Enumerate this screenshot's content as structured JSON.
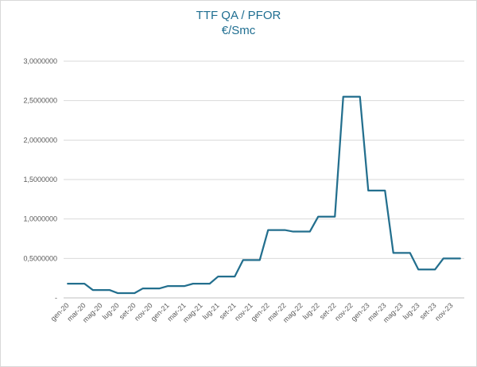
{
  "chart_data": {
    "type": "line",
    "title": "TTF QA / PFOR",
    "subtitle": "€/Smc",
    "xlabel": "",
    "ylabel": "",
    "ylim": [
      0,
      3.0
    ],
    "y_ticks": [
      {
        "value": 0,
        "label": "-"
      },
      {
        "value": 0.5,
        "label": "0,5000000"
      },
      {
        "value": 1.0,
        "label": "1,0000000"
      },
      {
        "value": 1.5,
        "label": "1,5000000"
      },
      {
        "value": 2.0,
        "label": "2,0000000"
      },
      {
        "value": 2.5,
        "label": "2,5000000"
      },
      {
        "value": 3.0,
        "label": "3,0000000"
      }
    ],
    "grid": "horizontal",
    "legend": "none",
    "color": "#236f8e",
    "x": [
      "gen-20",
      "feb-20",
      "mar-20",
      "apr-20",
      "mag-20",
      "giu-20",
      "lug-20",
      "ago-20",
      "set-20",
      "ott-20",
      "nov-20",
      "dic-20",
      "gen-21",
      "feb-21",
      "mar-21",
      "apr-21",
      "mag-21",
      "giu-21",
      "lug-21",
      "ago-21",
      "set-21",
      "ott-21",
      "nov-21",
      "dic-21",
      "gen-22",
      "feb-22",
      "mar-22",
      "apr-22",
      "mag-22",
      "giu-22",
      "lug-22",
      "ago-22",
      "set-22",
      "ott-22",
      "nov-22",
      "dic-22",
      "gen-23",
      "feb-23",
      "mar-23",
      "apr-23",
      "mag-23",
      "giu-23",
      "lug-23",
      "ago-23",
      "set-23",
      "ott-23",
      "nov-23",
      "dic-23"
    ],
    "x_tick_labels": [
      "gen-20",
      "mar-20",
      "mag-20",
      "lug-20",
      "set-20",
      "nov-20",
      "gen-21",
      "mar-21",
      "mag-21",
      "lug-21",
      "set-21",
      "nov-21",
      "gen-22",
      "mar-22",
      "mag-22",
      "lug-22",
      "set-22",
      "nov-22",
      "gen-23",
      "mar-23",
      "mag-23",
      "lug-23",
      "set-23",
      "nov-23"
    ],
    "values": [
      0.18,
      0.18,
      0.18,
      0.1,
      0.1,
      0.1,
      0.06,
      0.06,
      0.06,
      0.12,
      0.12,
      0.12,
      0.15,
      0.15,
      0.15,
      0.18,
      0.18,
      0.18,
      0.27,
      0.27,
      0.27,
      0.48,
      0.48,
      0.48,
      0.86,
      0.86,
      0.86,
      0.84,
      0.84,
      0.84,
      1.03,
      1.03,
      1.03,
      2.55,
      2.55,
      2.55,
      1.36,
      1.36,
      1.36,
      0.57,
      0.57,
      0.57,
      0.36,
      0.36,
      0.36,
      0.5,
      0.5,
      0.5
    ]
  }
}
